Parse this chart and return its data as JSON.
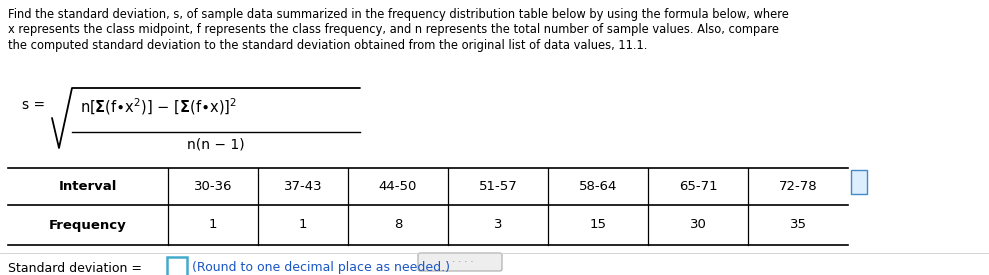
{
  "para_lines": [
    "Find the standard deviation, s, of sample data summarized in the frequency distribution table below by using the formula below, where",
    "x represents the class midpoint, f represents the class frequency, and n represents the total number of sample values. Also, compare",
    "the computed standard deviation to the standard deviation obtained from the original list of data values, 11.1."
  ],
  "intervals": [
    "30-36",
    "37-43",
    "44-50",
    "51-57",
    "58-64",
    "65-71",
    "72-78"
  ],
  "frequencies": [
    "1",
    "1",
    "8",
    "3",
    "15",
    "30",
    "35"
  ],
  "bg_color": "#ffffff",
  "text_color": "#000000",
  "blue_text_color": "#1a56c4",
  "table_line_color": "#000000",
  "input_box_edge_color": "#44aacc",
  "dots_color": "#888888",
  "scroll_edge_color": "#aaaaaa",
  "scroll_face_color": "#eeeeee",
  "icon_edge_color": "#4488cc",
  "icon_face_color": "#ddeeff"
}
